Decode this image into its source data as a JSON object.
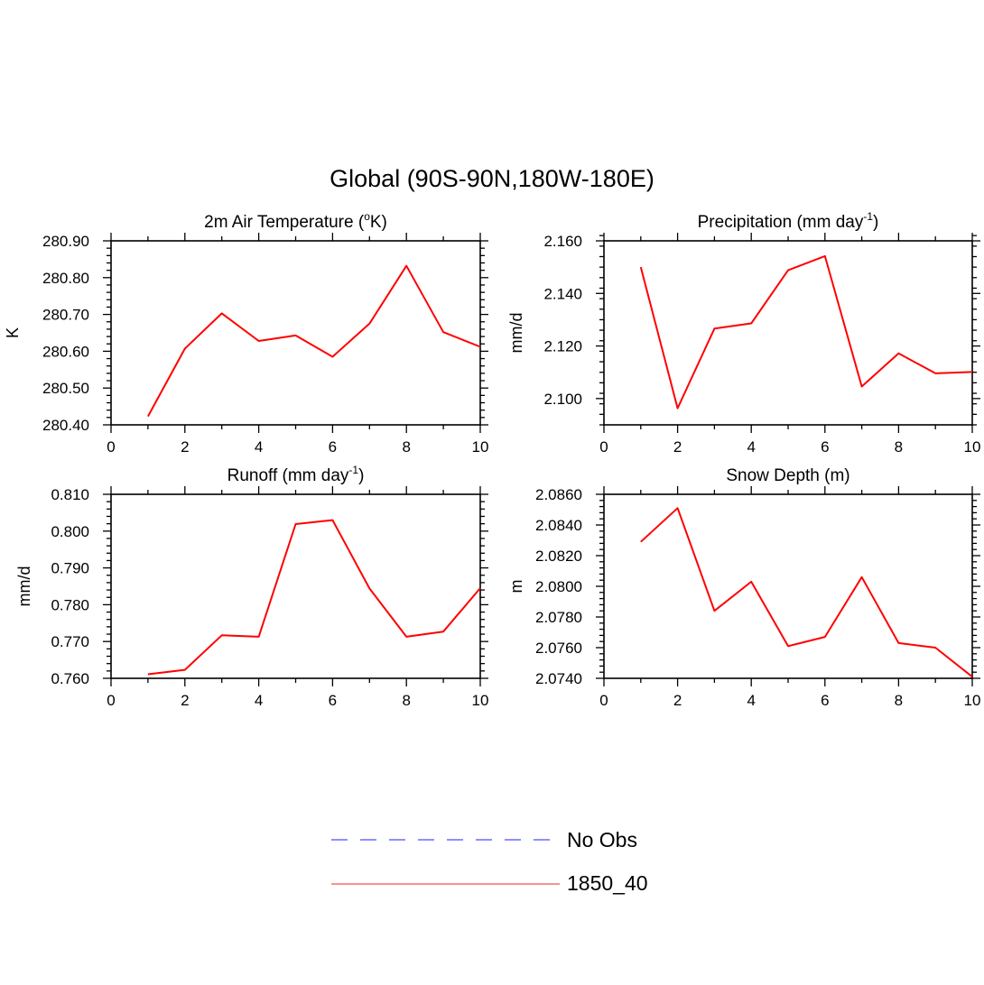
{
  "title": "Global (90S-90N,180W-180E)",
  "colors": {
    "series": "#ff0000",
    "obs": "#6a6aff",
    "legend_series": "#f07070"
  },
  "legend": [
    {
      "label": "No Obs",
      "style": "dashed",
      "color": "#6a6aff"
    },
    {
      "label": "1850_40",
      "style": "solid",
      "color": "#f07070"
    }
  ],
  "chart_data": [
    {
      "type": "line",
      "title": "2m Air Temperature (",
      "title_sup": "o",
      "title_end": "K)",
      "ylabel": "K",
      "xlim": [
        0,
        10
      ],
      "ylim": [
        280.4,
        280.9
      ],
      "xticks": [
        0,
        2,
        4,
        6,
        8,
        10
      ],
      "xtick_labels": [
        "0",
        "2",
        "4",
        "6",
        "8",
        "10"
      ],
      "yticks": [
        280.4,
        280.5,
        280.6,
        280.7,
        280.8,
        280.9
      ],
      "ytick_labels": [
        "280.40",
        "280.50",
        "280.60",
        "280.70",
        "280.80",
        "280.90"
      ],
      "yminor": 0.02,
      "x": [
        1,
        2,
        3,
        4,
        5,
        6,
        7,
        8,
        9,
        10
      ],
      "series": [
        {
          "name": "1850_40",
          "values": [
            280.423,
            280.607,
            280.703,
            280.628,
            280.643,
            280.585,
            280.675,
            280.832,
            280.652,
            280.612
          ]
        }
      ]
    },
    {
      "type": "line",
      "title": "Precipitation (mm day",
      "title_sup": "-1",
      "title_end": ")",
      "ylabel": "mm/d",
      "xlim": [
        0,
        10
      ],
      "ylim": [
        2.09,
        2.16
      ],
      "xticks": [
        0,
        2,
        4,
        6,
        8,
        10
      ],
      "xtick_labels": [
        "0",
        "2",
        "4",
        "6",
        "8",
        "10"
      ],
      "yticks": [
        2.1,
        2.12,
        2.14,
        2.16
      ],
      "ytick_labels": [
        "2.100",
        "2.120",
        "2.140",
        "2.160"
      ],
      "yminor": 0.004,
      "x": [
        1,
        2,
        3,
        4,
        5,
        6,
        7,
        8,
        9,
        10
      ],
      "series": [
        {
          "name": "1850_40",
          "values": [
            2.15,
            2.0963,
            2.1266,
            2.1286,
            2.1488,
            2.1542,
            2.1046,
            2.1172,
            2.1096,
            2.1101
          ]
        }
      ]
    },
    {
      "type": "line",
      "title": "Runoff (mm day",
      "title_sup": "-1",
      "title_end": ")",
      "ylabel": "mm/d",
      "xlim": [
        0,
        10
      ],
      "ylim": [
        0.76,
        0.81
      ],
      "xticks": [
        0,
        2,
        4,
        6,
        8,
        10
      ],
      "xtick_labels": [
        "0",
        "2",
        "4",
        "6",
        "8",
        "10"
      ],
      "yticks": [
        0.76,
        0.77,
        0.78,
        0.79,
        0.8,
        0.81
      ],
      "ytick_labels": [
        "0.760",
        "0.770",
        "0.780",
        "0.790",
        "0.800",
        "0.810"
      ],
      "yminor": 0.002,
      "x": [
        1,
        2,
        3,
        4,
        5,
        6,
        7,
        8,
        9,
        10
      ],
      "series": [
        {
          "name": "1850_40",
          "values": [
            0.7611,
            0.7623,
            0.7717,
            0.7713,
            0.8019,
            0.803,
            0.7844,
            0.7713,
            0.7727,
            0.7845
          ]
        }
      ]
    },
    {
      "type": "line",
      "title": "Snow Depth (m)",
      "title_sup": "",
      "title_end": "",
      "ylabel": "m",
      "xlim": [
        0,
        10
      ],
      "ylim": [
        2.074,
        2.086
      ],
      "xticks": [
        0,
        2,
        4,
        6,
        8,
        10
      ],
      "xtick_labels": [
        "0",
        "2",
        "4",
        "6",
        "8",
        "10"
      ],
      "yticks": [
        2.074,
        2.076,
        2.078,
        2.08,
        2.082,
        2.084,
        2.086
      ],
      "ytick_labels": [
        "2.0740",
        "2.0760",
        "2.0780",
        "2.0800",
        "2.0820",
        "2.0840",
        "2.0860"
      ],
      "yminor": 0.0004,
      "x": [
        1,
        2,
        3,
        4,
        5,
        6,
        7,
        8,
        9,
        10
      ],
      "series": [
        {
          "name": "1850_40",
          "values": [
            2.0829,
            2.0851,
            2.0784,
            2.0803,
            2.0761,
            2.0767,
            2.0806,
            2.0763,
            2.076,
            2.0741
          ]
        }
      ]
    }
  ]
}
